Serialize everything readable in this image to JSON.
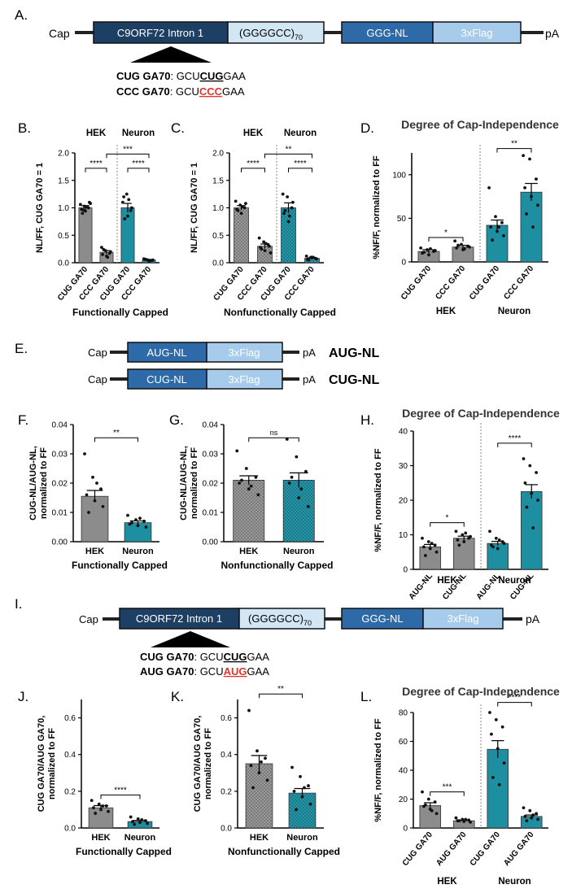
{
  "colors": {
    "hek": "#8c8c8c",
    "neuron": "#1e8fa0",
    "construct_dark": "#1d3f63",
    "construct_mid": "#2e6aa8",
    "construct_light": "#d3e6f4",
    "flag_light": "#a7cbea",
    "highlight": "#d9382a"
  },
  "constructs": {
    "A": {
      "panel": "A.",
      "cap": "Cap",
      "intron": "C9ORF72 Intron 1",
      "repeat": "(GGGGCC)",
      "repeat_sub": "70",
      "reporter": "GGG-NL",
      "flag": "3xFlag",
      "pA": "pA",
      "seq1_label": "CUG GA70",
      "seq1_pre": ": GCU",
      "seq1_codon": "CUG",
      "seq1_post": "GAA",
      "seq2_label": "CCC GA70",
      "seq2_pre": ": GCU",
      "seq2_codon": "CCC",
      "seq2_post": "GAA"
    },
    "E": {
      "panel": "E.",
      "cap": "Cap",
      "row1_reporter": "AUG-NL",
      "row1_flag": "3xFlag",
      "row1_pA": "pA",
      "row1_name": "AUG-NL",
      "row2_reporter": "CUG-NL",
      "row2_flag": "3xFlag",
      "row2_pA": "pA",
      "row2_name": "CUG-NL"
    },
    "I": {
      "panel": "I.",
      "cap": "Cap",
      "intron": "C9ORF72 Intron 1",
      "repeat": "(GGGGCC)",
      "repeat_sub": "70",
      "reporter": "GGG-NL",
      "flag": "3xFlag",
      "pA": "pA",
      "seq1_label": "CUG GA70",
      "seq1_pre": ": GCU",
      "seq1_codon": "CUG",
      "seq1_post": "GAA",
      "seq2_label": "AUG GA70",
      "seq2_pre": ": GCU",
      "seq2_codon": "AUG",
      "seq2_post": "GAA"
    }
  },
  "chart_data": [
    {
      "id": "B",
      "panel": "B.",
      "type": "bar",
      "title": "",
      "ylabel": "NL/FF, CUG GA70 = 1",
      "xlabel": "Functionally Capped",
      "ylim": [
        0,
        2.0
      ],
      "yticks": [
        "0.0",
        "0.5",
        "1.0",
        "1.5",
        "2.0"
      ],
      "group_labels": [
        "HEK",
        "Neuron"
      ],
      "divider": true,
      "categories": [
        "CUG GA70",
        "CCC GA70",
        "CUG GA70",
        "CCC GA70"
      ],
      "values": [
        1.0,
        0.19,
        1.0,
        0.05
      ],
      "errors": [
        0.04,
        0.03,
        0.08,
        0.01
      ],
      "groups": [
        "hek",
        "hek",
        "neuron",
        "neuron"
      ],
      "patterned": false,
      "points": [
        [
          1.06,
          1.03,
          1.0,
          0.97,
          0.94,
          1.1,
          0.9,
          1.02,
          1.08,
          0.96
        ],
        [
          0.28,
          0.22,
          0.17,
          0.15,
          0.12,
          0.2,
          0.24,
          0.1
        ],
        [
          1.1,
          1.25,
          0.95,
          1.2,
          0.85,
          1.0,
          0.8,
          1.15
        ],
        [
          0.07,
          0.05,
          0.04,
          0.06,
          0.03,
          0.05,
          0.06,
          0.04
        ]
      ],
      "significance": [
        {
          "from": 0,
          "to": 1,
          "y": 1.72,
          "label": "****"
        },
        {
          "from": 2,
          "to": 3,
          "y": 1.72,
          "label": "****"
        },
        {
          "from": 1,
          "to": 3,
          "y": 1.98,
          "label": "***"
        }
      ]
    },
    {
      "id": "C",
      "panel": "C.",
      "type": "bar",
      "title": "",
      "ylabel": "NL/FF, CUG GA70 = 1",
      "xlabel": "Nonfunctionally Capped",
      "ylim": [
        0,
        2.0
      ],
      "yticks": [
        "0.0",
        "0.5",
        "1.0",
        "1.5",
        "2.0"
      ],
      "group_labels": [
        "HEK",
        "Neuron"
      ],
      "divider": true,
      "categories": [
        "CUG GA70",
        "CCC GA70",
        "CUG GA70",
        "CCC GA70"
      ],
      "values": [
        1.0,
        0.3,
        1.0,
        0.08
      ],
      "errors": [
        0.04,
        0.04,
        0.09,
        0.01
      ],
      "groups": [
        "hek",
        "hek",
        "neuron",
        "neuron"
      ],
      "patterned": true,
      "points": [
        [
          1.12,
          1.05,
          1.0,
          0.97,
          0.9,
          1.08,
          0.95,
          1.02
        ],
        [
          0.45,
          0.38,
          0.33,
          0.28,
          0.22,
          0.3,
          0.25,
          0.35,
          0.18
        ],
        [
          1.25,
          1.2,
          1.0,
          0.9,
          0.75,
          1.1,
          0.95,
          0.85
        ],
        [
          0.12,
          0.1,
          0.08,
          0.06,
          0.09,
          0.07,
          0.05,
          0.1
        ]
      ],
      "significance": [
        {
          "from": 0,
          "to": 1,
          "y": 1.72,
          "label": "****"
        },
        {
          "from": 2,
          "to": 3,
          "y": 1.72,
          "label": "****"
        },
        {
          "from": 1,
          "to": 3,
          "y": 1.98,
          "label": "**"
        }
      ]
    },
    {
      "id": "D",
      "panel": "D.",
      "type": "bar",
      "title": "Degree of Cap-Independence",
      "ylabel": "%NF/F, normalized to FF",
      "xlabel": "",
      "ylim": [
        0,
        125
      ],
      "yticks": [
        "0",
        "50",
        "100"
      ],
      "ytick_values": [
        0,
        50,
        100
      ],
      "group_labels": [
        "HEK",
        "Neuron"
      ],
      "divider": true,
      "categories": [
        "CUG GA70",
        "CCC GA70",
        "CUG GA70",
        "CCC GA70"
      ],
      "values": [
        12,
        17,
        42,
        80
      ],
      "errors": [
        2,
        2,
        6,
        10
      ],
      "groups": [
        "hek",
        "hek",
        "neuron",
        "neuron"
      ],
      "patterned": false,
      "points": [
        [
          16,
          14,
          12,
          10,
          8,
          13,
          11,
          15
        ],
        [
          24,
          20,
          18,
          16,
          14,
          17,
          19,
          15
        ],
        [
          85,
          52,
          45,
          40,
          35,
          30,
          25,
          40
        ],
        [
          122,
          118,
          95,
          85,
          75,
          65,
          55,
          40
        ]
      ],
      "significance": [
        {
          "from": 0,
          "to": 1,
          "y": 28,
          "label": "*"
        },
        {
          "from": 2,
          "to": 3,
          "y": 130,
          "label": "**"
        }
      ]
    },
    {
      "id": "F",
      "panel": "F.",
      "type": "bar",
      "title": "",
      "ylabel": "CUG-NL/AUG-NL, normalized to FF",
      "xlabel": "Functionally Capped",
      "ylim": [
        0,
        0.04
      ],
      "yticks": [
        "0.00",
        "0.01",
        "0.02",
        "0.03",
        "0.04"
      ],
      "group_labels": [],
      "divider": false,
      "categories": [
        "HEK",
        "Neuron"
      ],
      "values": [
        0.0155,
        0.0065
      ],
      "errors": [
        0.002,
        0.0006
      ],
      "groups": [
        "hek",
        "neuron"
      ],
      "patterned": false,
      "points": [
        [
          0.03,
          0.022,
          0.018,
          0.016,
          0.014,
          0.012,
          0.01,
          0.02
        ],
        [
          0.009,
          0.0075,
          0.007,
          0.006,
          0.0055,
          0.005,
          0.0065,
          0.008
        ]
      ],
      "significance": [
        {
          "from": 0,
          "to": 1,
          "y": 0.0355,
          "label": "**"
        }
      ]
    },
    {
      "id": "G",
      "panel": "G.",
      "type": "bar",
      "title": "",
      "ylabel": "CUG-NL/AUG-NL, normalized to FF",
      "xlabel": "Nonfunctionally Capped",
      "ylim": [
        0,
        0.04
      ],
      "yticks": [
        "0.00",
        "0.01",
        "0.02",
        "0.03",
        "0.04"
      ],
      "group_labels": [],
      "divider": false,
      "categories": [
        "HEK",
        "Neuron"
      ],
      "values": [
        0.021,
        0.021
      ],
      "errors": [
        0.0015,
        0.0025
      ],
      "groups": [
        "hek",
        "neuron"
      ],
      "patterned": true,
      "points": [
        [
          0.031,
          0.025,
          0.022,
          0.02,
          0.018,
          0.016,
          0.021,
          0.019
        ],
        [
          0.035,
          0.029,
          0.024,
          0.02,
          0.015,
          0.012,
          0.022,
          0.018
        ]
      ],
      "significance": [
        {
          "from": 0,
          "to": 1,
          "y": 0.0355,
          "label": "ns"
        }
      ]
    },
    {
      "id": "H",
      "panel": "H.",
      "type": "bar",
      "title": "Degree of Cap-Independence",
      "ylabel": "%NF/F, normalized to FF",
      "xlabel": "",
      "ylim": [
        0,
        40
      ],
      "yticks": [
        "0",
        "10",
        "20",
        "30",
        "40"
      ],
      "ytick_values": [
        0,
        10,
        20,
        30,
        40
      ],
      "group_labels": [
        "HEK",
        "Neuron"
      ],
      "divider": true,
      "categories": [
        "AUG-NL",
        "CUG-NL",
        "AUG-NL",
        "CUG-NL"
      ],
      "values": [
        6.5,
        9,
        7.5,
        22.5
      ],
      "errors": [
        0.7,
        0.6,
        0.6,
        2
      ],
      "groups": [
        "hek",
        "hek",
        "neuron",
        "neuron"
      ],
      "patterned": false,
      "points": [
        [
          9,
          8,
          7,
          6.5,
          6,
          5,
          4,
          7.5
        ],
        [
          11,
          10,
          9,
          8.5,
          8,
          9.5,
          7,
          10.5
        ],
        [
          11,
          9,
          8,
          7,
          6,
          7.5,
          6.5,
          8.5
        ],
        [
          32,
          30,
          28,
          25,
          22,
          20,
          18,
          12
        ]
      ],
      "significance": [
        {
          "from": 0,
          "to": 1,
          "y": 13.5,
          "label": "*"
        },
        {
          "from": 2,
          "to": 3,
          "y": 36.5,
          "label": "****"
        }
      ]
    },
    {
      "id": "J",
      "panel": "J.",
      "type": "bar",
      "title": "",
      "ylabel": "CUG GA70/AUG GA70, normalized to FF",
      "xlabel": "Functionally Capped",
      "ylim": [
        0,
        0.7
      ],
      "yticks": [
        "0.0",
        "0.2",
        "0.4",
        "0.6"
      ],
      "ytick_values": [
        0,
        0.2,
        0.4,
        0.6
      ],
      "group_labels": [],
      "divider": false,
      "categories": [
        "HEK",
        "Neuron"
      ],
      "values": [
        0.11,
        0.035
      ],
      "errors": [
        0.012,
        0.006
      ],
      "groups": [
        "hek",
        "neuron"
      ],
      "patterned": false,
      "points": [
        [
          0.15,
          0.13,
          0.12,
          0.11,
          0.1,
          0.09,
          0.08,
          0.12
        ],
        [
          0.06,
          0.05,
          0.04,
          0.035,
          0.03,
          0.025,
          0.02,
          0.045
        ]
      ],
      "significance": [
        {
          "from": 0,
          "to": 1,
          "y": 0.18,
          "label": "****"
        }
      ]
    },
    {
      "id": "K",
      "panel": "K.",
      "type": "bar",
      "title": "",
      "ylabel": "CUG GA70/AUG GA70, normalized to FF",
      "xlabel": "Nonfunctionally Capped",
      "ylim": [
        0,
        0.7
      ],
      "yticks": [
        "0.0",
        "0.2",
        "0.4",
        "0.6"
      ],
      "ytick_values": [
        0,
        0.2,
        0.4,
        0.6
      ],
      "group_labels": [],
      "divider": false,
      "categories": [
        "HEK",
        "Neuron"
      ],
      "values": [
        0.35,
        0.19
      ],
      "errors": [
        0.045,
        0.025
      ],
      "groups": [
        "hek",
        "neuron"
      ],
      "patterned": true,
      "points": [
        [
          0.64,
          0.42,
          0.38,
          0.34,
          0.3,
          0.26,
          0.22,
          0.36
        ],
        [
          0.33,
          0.28,
          0.23,
          0.2,
          0.17,
          0.13,
          0.1,
          0.22
        ]
      ],
      "significance": [
        {
          "from": 0,
          "to": 1,
          "y": 0.73,
          "label": "**"
        }
      ]
    },
    {
      "id": "L",
      "panel": "L.",
      "type": "bar",
      "title": "Degree of Cap-Independence",
      "ylabel": "%NF/F, normalized to FF",
      "xlabel": "",
      "ylim": [
        0,
        80
      ],
      "yticks": [
        "0",
        "20",
        "40",
        "60",
        "80"
      ],
      "ytick_values": [
        0,
        20,
        40,
        60,
        80
      ],
      "group_labels": [
        "HEK",
        "Neuron"
      ],
      "divider": true,
      "categories": [
        "CUG GA70",
        "AUG GA70",
        "CUG GA70",
        "AUG GA70"
      ],
      "values": [
        15.5,
        5,
        54.5,
        8
      ],
      "errors": [
        2,
        0.5,
        6,
        1
      ],
      "groups": [
        "hek",
        "hek",
        "neuron",
        "neuron"
      ],
      "patterned": false,
      "points": [
        [
          25,
          20,
          18,
          15,
          13,
          10,
          16,
          12
        ],
        [
          7,
          6,
          5.5,
          5,
          4.5,
          4,
          5,
          6
        ],
        [
          80,
          75,
          70,
          65,
          55,
          45,
          35,
          30
        ],
        [
          14,
          12,
          10,
          8,
          7,
          6,
          5,
          9
        ]
      ],
      "significance": [
        {
          "from": 0,
          "to": 1,
          "y": 25,
          "label": "***"
        },
        {
          "from": 2,
          "to": 3,
          "y": 87,
          "label": "****"
        }
      ]
    }
  ]
}
